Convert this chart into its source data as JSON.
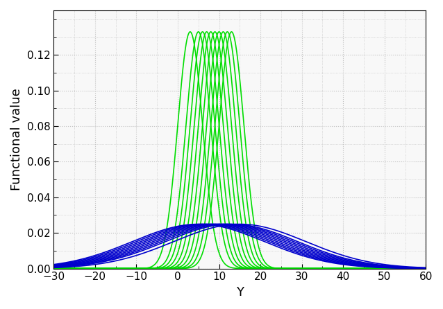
{
  "title": "",
  "xlabel": "Y",
  "ylabel": "Functional value",
  "xlim": [
    -30,
    60
  ],
  "ylim": [
    0,
    0.145
  ],
  "yticks": [
    0,
    0.02,
    0.04,
    0.06,
    0.08,
    0.1,
    0.12
  ],
  "xticks": [
    -30,
    -20,
    -10,
    0,
    10,
    20,
    30,
    40,
    50,
    60
  ],
  "green_color": "#00DD00",
  "blue_color": "#0000CC",
  "background_color": "#f8f8f8",
  "green_means": [
    3,
    5,
    6,
    7,
    8,
    9,
    10,
    11,
    12,
    13
  ],
  "green_stds": [
    3.0,
    3.0,
    3.0,
    3.0,
    3.0,
    3.0,
    3.0,
    3.0,
    3.0,
    3.0
  ],
  "blue_means": [
    5,
    6,
    7,
    8,
    9,
    10,
    11,
    12,
    13,
    15
  ],
  "blue_stds": [
    16.0,
    16.0,
    16.0,
    16.0,
    16.0,
    16.0,
    16.0,
    16.0,
    16.0,
    16.0
  ],
  "grid_color": "#c0c0c0",
  "linewidth": 1.2
}
